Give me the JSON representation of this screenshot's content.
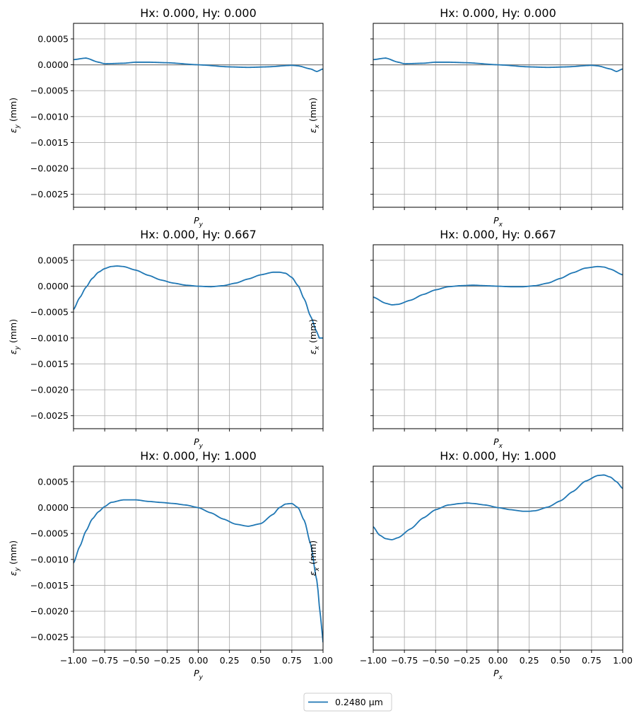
{
  "figure": {
    "legend": {
      "placement": "bottom-center",
      "label": "0.2480 µm",
      "color": "#1f77b4"
    },
    "line_color": "#1f77b4",
    "grid_color": "#b0b0b0",
    "zero_line_color": "#808080"
  },
  "chart_data": [
    {
      "type": "line",
      "title": "Hx: 0.000, Hy: 0.000",
      "xlabel": "P",
      "xlabel_sub": "y",
      "ylabel": "ε",
      "ylabel_sub": "y",
      "ylabel_unit": " (mm)",
      "xlim": [
        -1,
        1
      ],
      "ylim": [
        -0.00275,
        0.0008
      ],
      "grid": true,
      "show_xticklabels": false,
      "show_yticklabels": true,
      "series": [
        {
          "name": "0.2480 µm",
          "x": [
            -1.0,
            -0.9,
            -0.8,
            -0.75,
            -0.6,
            -0.5,
            -0.4,
            -0.25,
            0.0,
            0.25,
            0.4,
            0.55,
            0.75,
            0.8,
            0.9,
            0.95,
            1.0
          ],
          "y": [
            0.0001,
            0.00013,
            5e-05,
            2e-05,
            3e-05,
            5e-05,
            5e-05,
            4e-05,
            0.0,
            -4e-05,
            -5e-05,
            -4e-05,
            -1e-05,
            -2e-05,
            -8e-05,
            -0.00013,
            -8e-05
          ]
        }
      ]
    },
    {
      "type": "line",
      "title": "Hx: 0.000, Hy: 0.000",
      "xlabel": "P",
      "xlabel_sub": "x",
      "ylabel": "ε",
      "ylabel_sub": "x",
      "ylabel_unit": " (mm)",
      "xlim": [
        -1,
        1
      ],
      "ylim": [
        -0.00275,
        0.0008
      ],
      "grid": true,
      "show_xticklabels": false,
      "show_yticklabels": false,
      "series": [
        {
          "name": "0.2480 µm",
          "x": [
            -1.0,
            -0.9,
            -0.8,
            -0.75,
            -0.6,
            -0.5,
            -0.4,
            -0.25,
            0.0,
            0.25,
            0.4,
            0.55,
            0.75,
            0.8,
            0.9,
            0.95,
            1.0
          ],
          "y": [
            0.0001,
            0.00013,
            5e-05,
            2e-05,
            3e-05,
            5e-05,
            5e-05,
            4e-05,
            0.0,
            -4e-05,
            -5e-05,
            -4e-05,
            -1e-05,
            -2e-05,
            -8e-05,
            -0.00013,
            -8e-05
          ]
        }
      ]
    },
    {
      "type": "line",
      "title": "Hx: 0.000, Hy: 0.667",
      "xlabel": "P",
      "xlabel_sub": "y",
      "ylabel": "ε",
      "ylabel_sub": "y",
      "ylabel_unit": " (mm)",
      "xlim": [
        -1,
        1
      ],
      "ylim": [
        -0.00275,
        0.0008
      ],
      "grid": true,
      "show_xticklabels": false,
      "show_yticklabels": true,
      "series": [
        {
          "name": "0.2480 µm",
          "x": [
            -1.0,
            -0.95,
            -0.9,
            -0.85,
            -0.8,
            -0.75,
            -0.7,
            -0.65,
            -0.6,
            -0.5,
            -0.4,
            -0.3,
            -0.2,
            -0.1,
            0.0,
            0.1,
            0.2,
            0.3,
            0.4,
            0.5,
            0.6,
            0.65,
            0.7,
            0.75,
            0.8,
            0.85,
            0.9,
            0.95,
            0.97,
            1.0
          ],
          "y": [
            -0.00045,
            -0.00022,
            -2e-05,
            0.00015,
            0.00027,
            0.00034,
            0.00038,
            0.00039,
            0.00038,
            0.00031,
            0.00021,
            0.00012,
            6e-05,
            2e-05,
            0.0,
            -1e-05,
            1e-05,
            6e-05,
            0.00014,
            0.00022,
            0.00027,
            0.00027,
            0.00025,
            0.00017,
            1e-05,
            -0.00025,
            -0.00058,
            -0.00088,
            -0.001,
            -0.001
          ]
        }
      ]
    },
    {
      "type": "line",
      "title": "Hx: 0.000, Hy: 0.667",
      "xlabel": "P",
      "xlabel_sub": "x",
      "ylabel": "ε",
      "ylabel_sub": "x",
      "ylabel_unit": " (mm)",
      "xlim": [
        -1,
        1
      ],
      "ylim": [
        -0.00275,
        0.0008
      ],
      "grid": true,
      "show_xticklabels": false,
      "show_yticklabels": false,
      "series": [
        {
          "name": "0.2480 µm",
          "x": [
            -1.0,
            -0.9,
            -0.85,
            -0.8,
            -0.7,
            -0.6,
            -0.5,
            -0.4,
            -0.3,
            -0.2,
            -0.1,
            0.0,
            0.1,
            0.2,
            0.3,
            0.4,
            0.5,
            0.6,
            0.7,
            0.8,
            0.85,
            0.9,
            1.0
          ],
          "y": [
            -0.00021,
            -0.00033,
            -0.00036,
            -0.00035,
            -0.00027,
            -0.00016,
            -7e-05,
            -1e-05,
            1e-05,
            2e-05,
            1e-05,
            0.0,
            -1e-05,
            -1e-05,
            1e-05,
            6e-05,
            0.00015,
            0.00026,
            0.00035,
            0.00038,
            0.00037,
            0.00033,
            0.00022
          ]
        }
      ]
    },
    {
      "type": "line",
      "title": "Hx: 0.000, Hy: 1.000",
      "xlabel": "P",
      "xlabel_sub": "y",
      "ylabel": "ε",
      "ylabel_sub": "y",
      "ylabel_unit": " (mm)",
      "xlim": [
        -1,
        1
      ],
      "ylim": [
        -0.00275,
        0.0008
      ],
      "grid": true,
      "show_xticklabels": true,
      "show_yticklabels": true,
      "series": [
        {
          "name": "0.2480 µm",
          "x": [
            -1.0,
            -0.95,
            -0.9,
            -0.85,
            -0.8,
            -0.75,
            -0.7,
            -0.6,
            -0.5,
            -0.4,
            -0.3,
            -0.2,
            -0.1,
            0.0,
            0.1,
            0.2,
            0.3,
            0.4,
            0.5,
            0.6,
            0.65,
            0.7,
            0.75,
            0.8,
            0.85,
            0.9,
            0.95,
            0.98,
            1.0
          ],
          "y": [
            -0.00107,
            -0.00075,
            -0.00045,
            -0.00022,
            -8e-05,
            2e-05,
            0.0001,
            0.00015,
            0.00015,
            0.00012,
            0.0001,
            8e-05,
            5e-05,
            0.0,
            -0.0001,
            -0.00022,
            -0.00032,
            -0.00036,
            -0.00031,
            -0.00013,
            0.0,
            7e-05,
            8e-05,
            0.0,
            -0.00025,
            -0.0007,
            -0.0014,
            -0.0021,
            -0.0026
          ]
        }
      ]
    },
    {
      "type": "line",
      "title": "Hx: 0.000, Hy: 1.000",
      "xlabel": "P",
      "xlabel_sub": "x",
      "ylabel": "ε",
      "ylabel_sub": "x",
      "ylabel_unit": " (mm)",
      "xlim": [
        -1,
        1
      ],
      "ylim": [
        -0.00275,
        0.0008
      ],
      "grid": true,
      "show_xticklabels": true,
      "show_yticklabels": false,
      "series": [
        {
          "name": "0.2480 µm",
          "x": [
            -1.0,
            -0.95,
            -0.9,
            -0.85,
            -0.8,
            -0.7,
            -0.6,
            -0.5,
            -0.4,
            -0.3,
            -0.25,
            -0.2,
            -0.1,
            0.0,
            0.1,
            0.2,
            0.25,
            0.3,
            0.4,
            0.5,
            0.6,
            0.7,
            0.8,
            0.85,
            0.9,
            0.95,
            1.0
          ],
          "y": [
            -0.00037,
            -0.00053,
            -0.0006,
            -0.00062,
            -0.00058,
            -0.00041,
            -0.0002,
            -4e-05,
            5e-05,
            8e-05,
            9e-05,
            8e-05,
            5e-05,
            0.0,
            -4e-05,
            -7e-05,
            -7e-05,
            -6e-05,
            1e-05,
            0.00013,
            0.00031,
            0.00051,
            0.00062,
            0.00063,
            0.00059,
            0.0005,
            0.00037
          ]
        }
      ]
    }
  ]
}
